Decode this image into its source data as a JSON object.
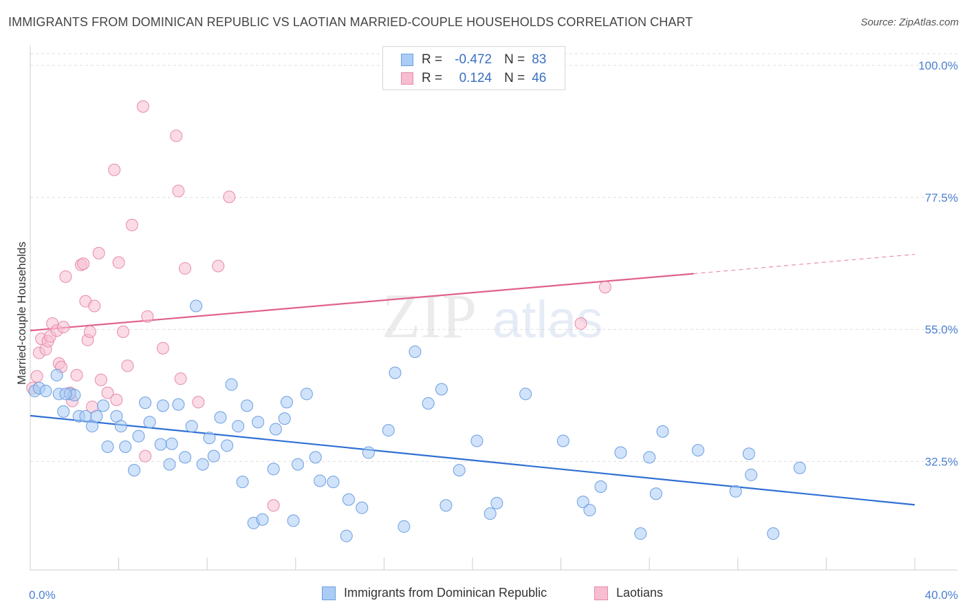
{
  "header": {
    "title": "IMMIGRANTS FROM DOMINICAN REPUBLIC VS LAOTIAN MARRIED-COUPLE HOUSEHOLDS CORRELATION CHART",
    "source": "Source: ZipAtlas.com"
  },
  "watermark": {
    "zip": "ZIP",
    "atlas": "atlas"
  },
  "legend": {
    "rows": [
      {
        "r_label": "R =",
        "r_value": "-0.472",
        "n_label": "N =",
        "n_value": "83"
      },
      {
        "r_label": "R =",
        "r_value": "0.124",
        "n_label": "N =",
        "n_value": "46"
      }
    ]
  },
  "bottom_legend": {
    "series1": "Immigrants from Dominican Republic",
    "series2": "Laotians"
  },
  "colors": {
    "blue_fill": "#aaccf5",
    "blue_stroke": "#6b9de0",
    "blue_line": "#2e6fd4",
    "pink_fill": "#f7bdd0",
    "pink_stroke": "#e68aa8",
    "pink_line": "#e0608a",
    "tick_text": "#4a7fd0"
  },
  "chart_data": {
    "type": "scatter",
    "title": "IMMIGRANTS FROM DOMINICAN REPUBLIC VS LAOTIAN MARRIED-COUPLE HOUSEHOLDS CORRELATION CHART",
    "xlabel": "",
    "ylabel": "Married-couple Households",
    "xlim": [
      0,
      40
    ],
    "ylim": [
      14,
      102
    ],
    "x_tick_labels": [
      "0.0%",
      "40.0%"
    ],
    "y_ticks": [
      32.5,
      55.0,
      77.5,
      100.0
    ],
    "y_tick_labels": [
      "32.5%",
      "55.0%",
      "77.5%",
      "100.0%"
    ],
    "grid": true,
    "legend_position": "top-center",
    "series": [
      {
        "name": "Immigrants from Dominican Republic",
        "r": -0.472,
        "n": 83,
        "trend": {
          "x": [
            0,
            40
          ],
          "y": [
            40.3,
            25.1
          ]
        },
        "points": [
          [
            0.2,
            44.5
          ],
          [
            0.4,
            45.0
          ],
          [
            0.7,
            44.5
          ],
          [
            1.2,
            47.2
          ],
          [
            1.3,
            44.0
          ],
          [
            1.5,
            41.0
          ],
          [
            1.8,
            44.0
          ],
          [
            2.0,
            43.8
          ],
          [
            2.2,
            40.2
          ],
          [
            2.5,
            40.2
          ],
          [
            2.8,
            38.5
          ],
          [
            3.0,
            40.2
          ],
          [
            3.3,
            42.0
          ],
          [
            3.5,
            35.0
          ],
          [
            3.9,
            40.2
          ],
          [
            4.1,
            38.5
          ],
          [
            4.3,
            35.0
          ],
          [
            4.7,
            31.0
          ],
          [
            4.9,
            36.8
          ],
          [
            5.2,
            42.5
          ],
          [
            5.4,
            39.2
          ],
          [
            5.9,
            35.4
          ],
          [
            6.0,
            42.0
          ],
          [
            6.3,
            32.0
          ],
          [
            6.4,
            35.5
          ],
          [
            6.7,
            42.2
          ],
          [
            7.0,
            33.2
          ],
          [
            7.3,
            38.5
          ],
          [
            7.5,
            59.0
          ],
          [
            7.8,
            32.0
          ],
          [
            8.1,
            36.5
          ],
          [
            8.3,
            33.4
          ],
          [
            8.6,
            40.0
          ],
          [
            8.9,
            35.2
          ],
          [
            9.1,
            45.6
          ],
          [
            9.4,
            38.5
          ],
          [
            9.6,
            29.0
          ],
          [
            9.8,
            42.0
          ],
          [
            10.1,
            22.0
          ],
          [
            10.3,
            39.2
          ],
          [
            10.5,
            22.6
          ],
          [
            11.0,
            31.2
          ],
          [
            11.1,
            38.0
          ],
          [
            11.5,
            39.8
          ],
          [
            11.6,
            42.6
          ],
          [
            11.9,
            22.4
          ],
          [
            12.1,
            32.0
          ],
          [
            12.5,
            44.0
          ],
          [
            12.9,
            33.2
          ],
          [
            13.1,
            29.2
          ],
          [
            13.7,
            29.0
          ],
          [
            14.3,
            19.8
          ],
          [
            14.4,
            26.0
          ],
          [
            15.0,
            24.6
          ],
          [
            15.3,
            34.0
          ],
          [
            16.2,
            37.8
          ],
          [
            16.5,
            47.6
          ],
          [
            16.9,
            21.4
          ],
          [
            17.4,
            51.2
          ],
          [
            18.0,
            42.4
          ],
          [
            18.6,
            44.8
          ],
          [
            18.8,
            25.0
          ],
          [
            19.4,
            31.0
          ],
          [
            20.2,
            36.0
          ],
          [
            20.8,
            23.6
          ],
          [
            21.1,
            25.4
          ],
          [
            22.4,
            44.0
          ],
          [
            24.1,
            36.0
          ],
          [
            25.0,
            25.6
          ],
          [
            25.3,
            24.2
          ],
          [
            25.8,
            28.2
          ],
          [
            26.7,
            34.0
          ],
          [
            27.6,
            20.2
          ],
          [
            28.0,
            33.2
          ],
          [
            28.3,
            27.0
          ],
          [
            28.6,
            37.6
          ],
          [
            30.2,
            34.4
          ],
          [
            31.9,
            27.4
          ],
          [
            32.5,
            33.8
          ],
          [
            32.6,
            30.2
          ],
          [
            33.6,
            20.2
          ],
          [
            34.8,
            31.4
          ],
          [
            1.6,
            44.0
          ]
        ]
      },
      {
        "name": "Laotians",
        "r": 0.124,
        "n": 46,
        "trend": {
          "x": [
            0,
            30
          ],
          "y": [
            54.8,
            64.5
          ]
        },
        "trend_dashed": {
          "x": [
            30,
            40
          ],
          "y": [
            64.5,
            67.8
          ]
        },
        "points": [
          [
            0.1,
            45.0
          ],
          [
            0.3,
            47.0
          ],
          [
            0.4,
            51.0
          ],
          [
            0.5,
            53.4
          ],
          [
            0.7,
            51.6
          ],
          [
            0.8,
            53.0
          ],
          [
            0.9,
            53.8
          ],
          [
            1.0,
            56.0
          ],
          [
            1.2,
            54.8
          ],
          [
            1.3,
            49.2
          ],
          [
            1.4,
            48.6
          ],
          [
            1.5,
            55.4
          ],
          [
            1.6,
            64.0
          ],
          [
            1.8,
            44.2
          ],
          [
            1.9,
            42.8
          ],
          [
            2.1,
            47.2
          ],
          [
            2.3,
            66.0
          ],
          [
            2.4,
            66.2
          ],
          [
            2.5,
            59.8
          ],
          [
            2.6,
            53.2
          ],
          [
            2.7,
            54.6
          ],
          [
            2.8,
            41.8
          ],
          [
            2.9,
            59.0
          ],
          [
            3.1,
            68.0
          ],
          [
            3.2,
            46.4
          ],
          [
            3.5,
            44.2
          ],
          [
            3.9,
            43.0
          ],
          [
            4.0,
            66.4
          ],
          [
            4.2,
            54.6
          ],
          [
            4.4,
            48.8
          ],
          [
            4.6,
            72.8
          ],
          [
            5.1,
            93.0
          ],
          [
            5.2,
            33.4
          ],
          [
            5.3,
            57.2
          ],
          [
            6.0,
            51.8
          ],
          [
            6.6,
            88.0
          ],
          [
            6.7,
            78.6
          ],
          [
            6.8,
            46.6
          ],
          [
            7.0,
            65.4
          ],
          [
            7.6,
            42.6
          ],
          [
            8.5,
            65.8
          ],
          [
            9.0,
            77.6
          ],
          [
            11.0,
            25.0
          ],
          [
            24.9,
            56.0
          ],
          [
            26.0,
            62.2
          ],
          [
            3.8,
            82.2
          ]
        ]
      }
    ]
  }
}
